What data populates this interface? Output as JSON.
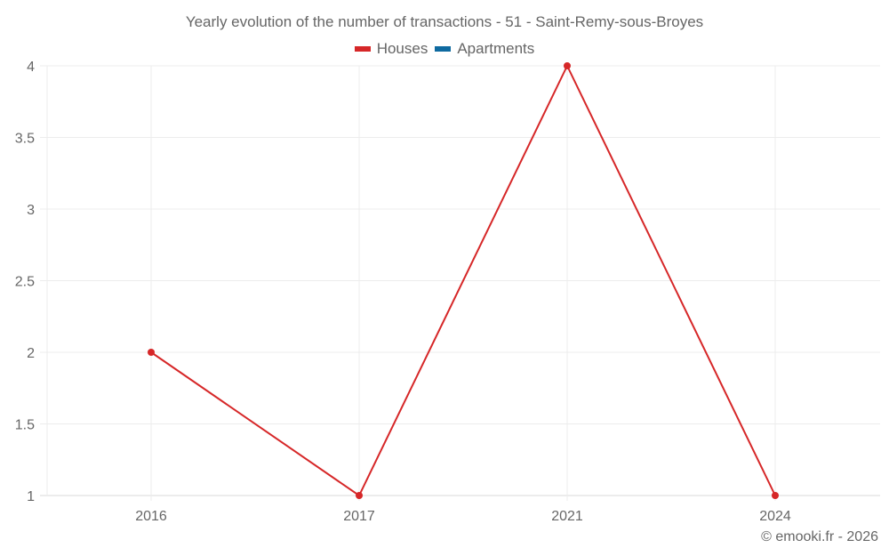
{
  "header": {
    "title": "Yearly evolution of the number of transactions - 51 - Saint-Remy-sous-Broyes"
  },
  "legend": [
    {
      "label": "Houses",
      "color": "#d62728"
    },
    {
      "label": "Apartments",
      "color": "#0f6aa0"
    }
  ],
  "footer": {
    "credit": "© emooki.fr - 2026"
  },
  "chart_data": {
    "type": "line",
    "title": "Yearly evolution of the number of transactions - 51 - Saint-Remy-sous-Broyes",
    "xlabel": "",
    "ylabel": "",
    "categories": [
      "2016",
      "2017",
      "2021",
      "2024"
    ],
    "series": [
      {
        "name": "Houses",
        "color": "#d62728",
        "values": [
          2,
          1,
          4,
          1
        ]
      },
      {
        "name": "Apartments",
        "color": "#0f6aa0",
        "values": [
          null,
          null,
          null,
          null
        ]
      }
    ],
    "ylim": [
      1,
      4
    ],
    "yticks": [
      "1",
      "1.5",
      "2",
      "2.5",
      "3",
      "3.5",
      "4"
    ],
    "grid": true,
    "legend_position": "top"
  }
}
